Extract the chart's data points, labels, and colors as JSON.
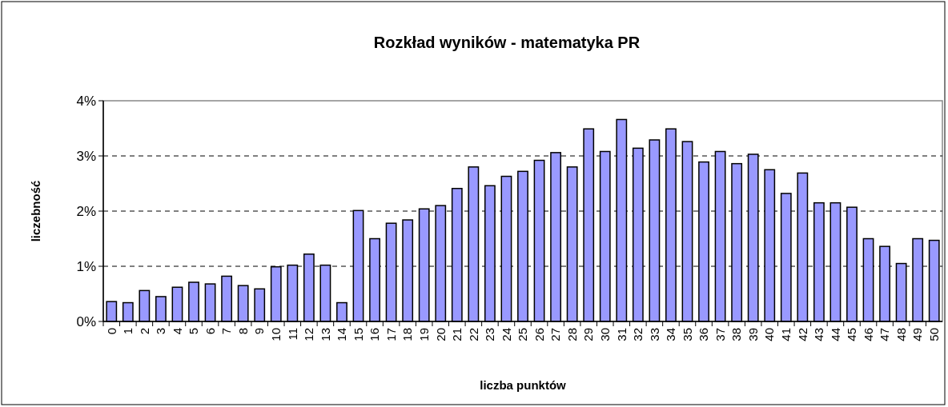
{
  "chart_data": {
    "type": "bar",
    "title": "Rozkład wyników - matematyka PR",
    "xlabel": "liczba punktów",
    "ylabel": "liczebność",
    "categories": [
      "0",
      "1",
      "2",
      "3",
      "4",
      "5",
      "6",
      "7",
      "8",
      "9",
      "10",
      "11",
      "12",
      "13",
      "14",
      "15",
      "16",
      "17",
      "18",
      "19",
      "20",
      "21",
      "22",
      "23",
      "24",
      "25",
      "26",
      "27",
      "28",
      "29",
      "30",
      "31",
      "32",
      "33",
      "34",
      "35",
      "36",
      "37",
      "38",
      "39",
      "40",
      "41",
      "42",
      "43",
      "44",
      "45",
      "46",
      "47",
      "48",
      "49",
      "50"
    ],
    "values": [
      0.36,
      0.34,
      0.56,
      0.45,
      0.62,
      0.71,
      0.68,
      0.82,
      0.65,
      0.59,
      0.99,
      1.02,
      1.22,
      1.02,
      0.34,
      2.01,
      1.5,
      1.78,
      1.84,
      2.04,
      2.1,
      2.41,
      2.8,
      2.46,
      2.63,
      2.72,
      2.92,
      3.06,
      2.8,
      3.49,
      3.08,
      3.66,
      3.14,
      3.29,
      3.49,
      3.26,
      2.89,
      3.08,
      2.86,
      3.03,
      2.75,
      2.32,
      2.69,
      2.15,
      2.15,
      2.07,
      1.5,
      1.36,
      1.05,
      1.5,
      1.47
    ],
    "color": "#9999ff",
    "ylim": [
      0,
      4
    ],
    "yticks": [
      {
        "value": 0,
        "label": "0%"
      },
      {
        "value": 1,
        "label": "1%"
      },
      {
        "value": 2,
        "label": "2%"
      },
      {
        "value": 3,
        "label": "3%"
      },
      {
        "value": 4,
        "label": "4%"
      }
    ],
    "grid": "y"
  }
}
